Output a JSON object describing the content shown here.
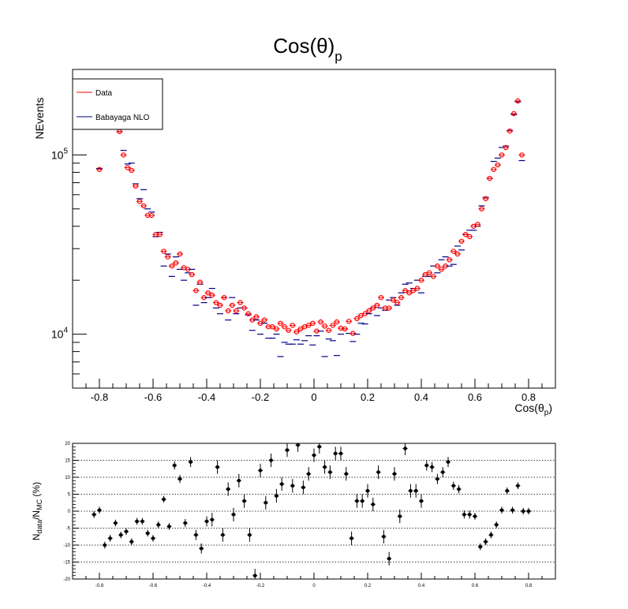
{
  "chart_data": [
    {
      "type": "scatter",
      "title": "Cos(θ)",
      "title_sub": "p",
      "ylabel": "NEvents",
      "xlabel": "Cos(θ",
      "xlabel_sub": "p",
      "xlabel_close": ")",
      "xlim": [
        -0.9,
        0.9
      ],
      "ylim": [
        5000,
        300000
      ],
      "yscale": "log",
      "x_ticks": [
        "-0.8",
        "-0.6",
        "-0.4",
        "-0.2",
        "0",
        "0.2",
        "0.4",
        "0.6",
        "0.8"
      ],
      "y_tick_base": "10",
      "y_ticks": [
        {
          "value": 10000,
          "exp": "4"
        },
        {
          "value": 100000,
          "exp": "5"
        }
      ],
      "legend": {
        "position": "top-left",
        "entries": [
          "Data",
          "Babayaga NLO"
        ]
      },
      "colors": {
        "data": "#ff0000",
        "mc": "#00008b"
      },
      "x": [
        -0.8,
        -0.77,
        -0.755,
        -0.74,
        -0.725,
        -0.71,
        -0.695,
        -0.68,
        -0.665,
        -0.65,
        -0.635,
        -0.62,
        -0.605,
        -0.59,
        -0.575,
        -0.56,
        -0.545,
        -0.53,
        -0.515,
        -0.5,
        -0.485,
        -0.47,
        -0.455,
        -0.44,
        -0.425,
        -0.41,
        -0.395,
        -0.38,
        -0.365,
        -0.35,
        -0.335,
        -0.32,
        -0.305,
        -0.29,
        -0.275,
        -0.26,
        -0.245,
        -0.23,
        -0.215,
        -0.2,
        -0.185,
        -0.17,
        -0.155,
        -0.14,
        -0.125,
        -0.11,
        -0.095,
        -0.08,
        -0.065,
        -0.05,
        -0.035,
        -0.02,
        -0.005,
        0.01,
        0.025,
        0.04,
        0.055,
        0.07,
        0.085,
        0.1,
        0.115,
        0.13,
        0.145,
        0.16,
        0.175,
        0.19,
        0.205,
        0.22,
        0.235,
        0.25,
        0.265,
        0.28,
        0.295,
        0.31,
        0.325,
        0.34,
        0.355,
        0.37,
        0.385,
        0.4,
        0.415,
        0.43,
        0.445,
        0.46,
        0.475,
        0.49,
        0.505,
        0.52,
        0.535,
        0.55,
        0.565,
        0.58,
        0.595,
        0.61,
        0.625,
        0.64,
        0.655,
        0.67,
        0.685,
        0.7,
        0.715,
        0.73,
        0.745,
        0.76,
        0.775,
        0.79,
        0.805
      ],
      "series": [
        {
          "name": "Data",
          "values": [
            83000,
            230000,
            160000,
            150000,
            135000,
            100000,
            85000,
            82000,
            67000,
            55000,
            52000,
            46000,
            46000,
            36000,
            36000,
            29000,
            27000,
            24000,
            25000,
            28000,
            23500,
            23000,
            21500,
            17500,
            19500,
            16000,
            17000,
            16500,
            15000,
            14500,
            16000,
            13500,
            14500,
            13500,
            15000,
            14000,
            13000,
            12000,
            12500,
            11500,
            12000,
            11000,
            11000,
            10700,
            11500,
            11000,
            10500,
            11200,
            10300,
            10700,
            11000,
            11200,
            11500,
            10400,
            11700,
            11100,
            10500,
            11200,
            11700,
            10800,
            10700,
            11800,
            10100,
            12200,
            12700,
            13000,
            13500,
            14000,
            14500,
            16000,
            14000,
            14000,
            15500,
            15000,
            16000,
            17500,
            17000,
            17500,
            18000,
            20000,
            21500,
            22000,
            21000,
            24000,
            23000,
            24000,
            26000,
            29000,
            28000,
            33000,
            36000,
            35000,
            40000,
            41000,
            50000,
            57000,
            74000,
            83000,
            88000,
            100000,
            110000,
            136000,
            170000,
            200000,
            100000
          ]
        },
        {
          "name": "Babayaga NLO",
          "values": [
            84000,
            225000,
            160000,
            150000,
            135000,
            106000,
            89000,
            90000,
            69000,
            57000,
            64000,
            50000,
            48000,
            35000,
            37000,
            24000,
            28000,
            21000,
            27000,
            23000,
            20000,
            22000,
            23000,
            14500,
            19000,
            15000,
            16000,
            18000,
            14000,
            13000,
            16000,
            12000,
            16000,
            13000,
            14000,
            14000,
            12800,
            10500,
            12000,
            10000,
            11500,
            9500,
            9500,
            10000,
            7500,
            9000,
            8800,
            8800,
            9300,
            8800,
            9200,
            9800,
            8700,
            9800,
            10400,
            7500,
            9400,
            9200,
            7600,
            10000,
            10700,
            10100,
            9100,
            10000,
            11500,
            11400,
            13000,
            14000,
            12700,
            14000,
            13600,
            15500,
            16000,
            14500,
            17000,
            19000,
            19300,
            18000,
            20000,
            17000,
            21000,
            21000,
            24000,
            22000,
            26000,
            27000,
            24000,
            24500,
            31000,
            29500,
            36000,
            38000,
            38000,
            40000,
            52000,
            58000,
            74000,
            92000,
            96000,
            110000,
            112000,
            137000,
            168000,
            198000,
            93000
          ]
        }
      ]
    },
    {
      "type": "scatter",
      "ylabel_parts": [
        "N",
        "data",
        "/N",
        "MC",
        " (%)"
      ],
      "xlim": [
        -0.9,
        0.9
      ],
      "ylim": [
        -20,
        20
      ],
      "grid": "horizontal dotted",
      "x_ticks": [
        "-0.8",
        "-0.6",
        "-0.4",
        "-0.2",
        "0",
        "0.2",
        "0.4",
        "0.6",
        "0.8"
      ],
      "y_ticks": [
        "-20",
        "-15",
        "-10",
        "-5",
        "0",
        "5",
        "10",
        "15",
        "20"
      ],
      "x": [
        -0.82,
        -0.8,
        -0.78,
        -0.76,
        -0.74,
        -0.72,
        -0.7,
        -0.68,
        -0.66,
        -0.64,
        -0.62,
        -0.6,
        -0.58,
        -0.56,
        -0.54,
        -0.52,
        -0.5,
        -0.48,
        -0.46,
        -0.44,
        -0.42,
        -0.4,
        -0.38,
        -0.36,
        -0.34,
        -0.32,
        -0.3,
        -0.28,
        -0.26,
        -0.24,
        -0.22,
        -0.2,
        -0.18,
        -0.16,
        -0.14,
        -0.12,
        -0.1,
        -0.08,
        -0.06,
        -0.04,
        -0.02,
        0.0,
        0.02,
        0.04,
        0.06,
        0.08,
        0.1,
        0.12,
        0.14,
        0.16,
        0.18,
        0.2,
        0.22,
        0.24,
        0.26,
        0.28,
        0.3,
        0.32,
        0.34,
        0.36,
        0.38,
        0.4,
        0.42,
        0.44,
        0.46,
        0.48,
        0.5,
        0.52,
        0.54,
        0.56,
        0.58,
        0.6,
        0.62,
        0.64,
        0.66,
        0.68,
        0.7,
        0.72,
        0.74,
        0.76,
        0.78,
        0.8
      ],
      "values": [
        -1,
        0.3,
        -10,
        -8,
        -3.5,
        -7,
        -6,
        -9,
        -3,
        -3,
        -6.5,
        -8,
        -4,
        3.5,
        -4.5,
        13.5,
        9.5,
        -3.5,
        14.5,
        -7,
        -11,
        -3,
        -2.5,
        13,
        -7,
        6.5,
        -1,
        9,
        3,
        -7,
        -19,
        12,
        2.5,
        15,
        4.5,
        8,
        18,
        7.5,
        19.5,
        7,
        11,
        16.5,
        19,
        13,
        11.5,
        17,
        17,
        11,
        -8,
        3,
        3,
        6,
        2,
        11.5,
        -7.5,
        -14,
        11,
        -1.5,
        18.5,
        6,
        6,
        3,
        13.5,
        13,
        9.5,
        11.5,
        14.5,
        7.5,
        6.5,
        -1,
        -1,
        -1.5,
        -10.5,
        -9,
        -7,
        -4,
        0.3,
        6,
        0.3,
        7.5,
        0,
        0
      ],
      "errors": [
        1,
        1,
        1,
        1,
        1,
        1,
        1,
        1,
        1,
        1,
        1,
        1,
        1,
        1,
        1,
        1.2,
        1.2,
        1.2,
        1.5,
        1.5,
        1.5,
        1.5,
        2,
        2,
        2,
        2,
        2,
        2,
        2,
        2,
        2,
        2,
        2,
        2,
        2,
        2,
        2,
        2,
        2,
        2,
        2,
        2,
        2,
        2,
        2,
        2,
        2,
        2,
        2,
        2,
        2,
        2,
        2,
        2,
        2,
        2,
        2,
        2,
        2,
        2,
        2,
        2,
        1.5,
        1.5,
        1.5,
        1.5,
        1.5,
        1.2,
        1.2,
        1.2,
        1.2,
        1,
        1,
        1,
        1,
        1,
        1,
        1,
        1,
        1,
        1,
        1
      ]
    }
  ]
}
